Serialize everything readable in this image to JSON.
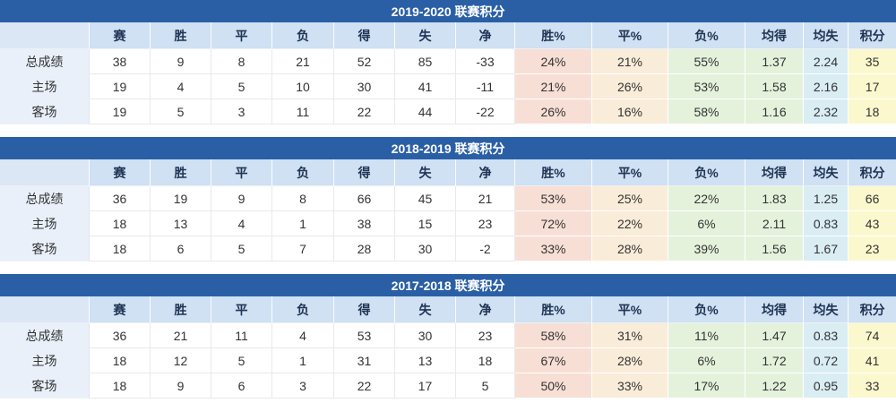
{
  "columns": [
    "",
    "赛",
    "胜",
    "平",
    "负",
    "得",
    "失",
    "净",
    "胜%",
    "平%",
    "负%",
    "均得",
    "均失",
    "积分"
  ],
  "tables": [
    {
      "title": "2019-2020 联赛积分",
      "rows": [
        {
          "label": "总成绩",
          "values": [
            "38",
            "9",
            "8",
            "21",
            "52",
            "85",
            "-33",
            "24%",
            "21%",
            "55%",
            "1.37",
            "2.24",
            "35"
          ]
        },
        {
          "label": "主场",
          "values": [
            "19",
            "4",
            "5",
            "10",
            "30",
            "41",
            "-11",
            "21%",
            "26%",
            "53%",
            "1.58",
            "2.16",
            "17"
          ]
        },
        {
          "label": "客场",
          "values": [
            "19",
            "5",
            "3",
            "11",
            "22",
            "44",
            "-22",
            "26%",
            "16%",
            "58%",
            "1.16",
            "2.32",
            "18"
          ]
        }
      ]
    },
    {
      "title": "2018-2019 联赛积分",
      "rows": [
        {
          "label": "总成绩",
          "values": [
            "36",
            "19",
            "9",
            "8",
            "66",
            "45",
            "21",
            "53%",
            "25%",
            "22%",
            "1.83",
            "1.25",
            "66"
          ]
        },
        {
          "label": "主场",
          "values": [
            "18",
            "13",
            "4",
            "1",
            "38",
            "15",
            "23",
            "72%",
            "22%",
            "6%",
            "2.11",
            "0.83",
            "43"
          ]
        },
        {
          "label": "客场",
          "values": [
            "18",
            "6",
            "5",
            "7",
            "28",
            "30",
            "-2",
            "33%",
            "28%",
            "39%",
            "1.56",
            "1.67",
            "23"
          ]
        }
      ]
    },
    {
      "title": "2017-2018 联赛积分",
      "rows": [
        {
          "label": "总成绩",
          "values": [
            "36",
            "21",
            "11",
            "4",
            "53",
            "30",
            "23",
            "58%",
            "31%",
            "11%",
            "1.47",
            "0.83",
            "74"
          ]
        },
        {
          "label": "主场",
          "values": [
            "18",
            "12",
            "5",
            "1",
            "31",
            "13",
            "18",
            "67%",
            "28%",
            "6%",
            "1.72",
            "0.72",
            "41"
          ]
        },
        {
          "label": "客场",
          "values": [
            "18",
            "9",
            "6",
            "3",
            "22",
            "17",
            "5",
            "50%",
            "33%",
            "17%",
            "1.22",
            "0.95",
            "33"
          ]
        }
      ]
    }
  ],
  "colors": {
    "title_bg": "#2a5fa5",
    "title_text": "#ffffff",
    "header_bg": "#cfe1f3",
    "header_label_bg": "#dbe7f5",
    "header_text": "#203454",
    "label_bg": "#e9f0f9",
    "win_pct_bg": "#f8dfd5",
    "draw_pct_bg": "#f9ecd9",
    "loss_pct_bg": "#e4f2dc",
    "avg_for_bg": "#e4f2dc",
    "avg_against_bg": "#d9edf3",
    "points_bg": "#fbf8cd"
  }
}
